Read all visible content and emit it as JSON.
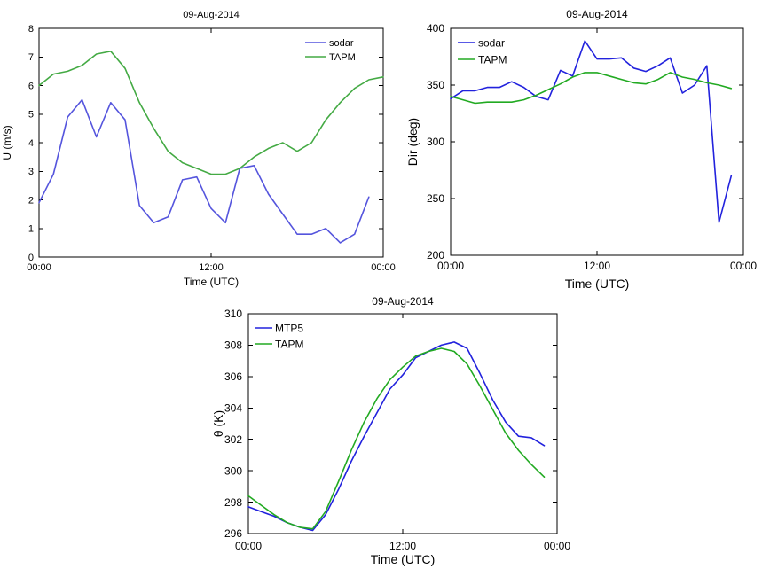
{
  "chart_data": [
    {
      "type": "line",
      "title": "09-Aug-2014",
      "xlabel": "Time (UTC)",
      "ylabel": "U (m/s)",
      "xlim": [
        0,
        24
      ],
      "ylim": [
        0,
        8
      ],
      "xticks": [
        0,
        12,
        24
      ],
      "xtick_labels": [
        "00:00",
        "12:00",
        "00:00"
      ],
      "yticks": [
        0,
        1,
        2,
        3,
        4,
        5,
        6,
        7,
        8
      ],
      "ytick_labels": [
        "0",
        "1",
        "2",
        "3",
        "4",
        "5",
        "6",
        "7",
        "8"
      ],
      "legend_position": "top-right",
      "grid": false,
      "series": [
        {
          "name": "sodar",
          "color": "#5555dd",
          "x": [
            0,
            1,
            2,
            3,
            4,
            5,
            6,
            7,
            8,
            9,
            10,
            11,
            12,
            13,
            14,
            15,
            16,
            17,
            18,
            19,
            20,
            21,
            22,
            23
          ],
          "y": [
            1.9,
            2.9,
            4.9,
            5.5,
            4.2,
            5.4,
            4.8,
            1.8,
            1.2,
            1.4,
            2.7,
            2.8,
            1.7,
            1.2,
            3.1,
            3.2,
            2.2,
            1.5,
            0.8,
            0.8,
            1.0,
            0.5,
            0.8,
            2.1
          ]
        },
        {
          "name": "TAPM",
          "color": "#44aa44",
          "x": [
            0,
            1,
            2,
            3,
            4,
            5,
            6,
            7,
            8,
            9,
            10,
            11,
            12,
            13,
            14,
            15,
            16,
            17,
            18,
            19,
            20,
            21,
            22,
            23,
            24
          ],
          "y": [
            6.0,
            6.4,
            6.5,
            6.7,
            7.1,
            7.2,
            6.6,
            5.4,
            4.5,
            3.7,
            3.3,
            3.1,
            2.9,
            2.9,
            3.1,
            3.5,
            3.8,
            4.0,
            3.7,
            4.0,
            4.8,
            5.4,
            5.9,
            6.2,
            6.3
          ]
        }
      ]
    },
    {
      "type": "line",
      "title": "09-Aug-2014",
      "xlabel": "Time (UTC)",
      "ylabel": "Dir (deg)",
      "xlim": [
        0,
        24
      ],
      "ylim": [
        200,
        400
      ],
      "xticks": [
        0,
        12,
        24
      ],
      "xtick_labels": [
        "00:00",
        "12:00",
        "00:00"
      ],
      "yticks": [
        200,
        250,
        300,
        350,
        400
      ],
      "ytick_labels": [
        "200",
        "250",
        "300",
        "350",
        "400"
      ],
      "legend_position": "top-left",
      "grid": false,
      "series": [
        {
          "name": "sodar",
          "color": "#2222dd",
          "x": [
            0,
            1,
            2,
            3,
            4,
            5,
            6,
            7,
            8,
            9,
            10,
            11,
            12,
            13,
            14,
            15,
            16,
            17,
            18,
            19,
            20,
            21,
            22,
            23
          ],
          "y": [
            338,
            345,
            345,
            348,
            348,
            353,
            348,
            340,
            337,
            363,
            358,
            389,
            373,
            373,
            374,
            365,
            362,
            367,
            374,
            343,
            350,
            367,
            229,
            270
          ]
        },
        {
          "name": "TAPM",
          "color": "#22aa22",
          "x": [
            0,
            1,
            2,
            3,
            4,
            5,
            6,
            7,
            8,
            9,
            10,
            11,
            12,
            13,
            14,
            15,
            16,
            17,
            18,
            19,
            20,
            21,
            22,
            23
          ],
          "y": [
            340,
            337,
            334,
            335,
            335,
            335,
            337,
            341,
            346,
            351,
            357,
            361,
            361,
            358,
            355,
            352,
            351,
            355,
            361,
            357,
            355,
            352,
            350,
            347
          ]
        }
      ]
    },
    {
      "type": "line",
      "title": "09-Aug-2014",
      "xlabel": "Time (UTC)",
      "ylabel": "θ (K)",
      "xlim": [
        0,
        24
      ],
      "ylim": [
        296,
        310
      ],
      "xticks": [
        0,
        12,
        24
      ],
      "xtick_labels": [
        "00:00",
        "12:00",
        "00:00"
      ],
      "yticks": [
        296,
        298,
        300,
        302,
        304,
        306,
        308,
        310
      ],
      "ytick_labels": [
        "296",
        "298",
        "300",
        "302",
        "304",
        "306",
        "308",
        "310"
      ],
      "legend_position": "top-left",
      "grid": false,
      "series": [
        {
          "name": "MTP5",
          "color": "#2222dd",
          "x": [
            0,
            1,
            2,
            3,
            4,
            5,
            6,
            7,
            8,
            9,
            10,
            11,
            12,
            13,
            14,
            15,
            16,
            17,
            18,
            19,
            20,
            21,
            22,
            23,
            24
          ],
          "y": [
            297.7,
            297.4,
            297.1,
            296.7,
            296.4,
            296.2,
            297.2,
            298.8,
            300.6,
            302.2,
            303.7,
            305.2,
            306.1,
            307.2,
            307.6,
            308.0,
            308.2,
            307.8,
            306.2,
            304.5,
            303.1,
            302.2,
            302.1,
            301.6,
            null
          ]
        },
        {
          "name": "TAPM",
          "color": "#22aa22",
          "x": [
            0,
            1,
            2,
            3,
            4,
            5,
            6,
            7,
            8,
            9,
            10,
            11,
            12,
            13,
            14,
            15,
            16,
            17,
            18,
            19,
            20,
            21,
            22,
            23,
            24
          ],
          "y": [
            298.4,
            297.8,
            297.2,
            296.7,
            296.4,
            296.3,
            297.4,
            299.3,
            301.3,
            303.1,
            304.6,
            305.8,
            306.6,
            307.3,
            307.6,
            307.8,
            307.6,
            306.8,
            305.4,
            303.9,
            302.4,
            301.3,
            300.4,
            299.6,
            null
          ]
        }
      ]
    }
  ]
}
